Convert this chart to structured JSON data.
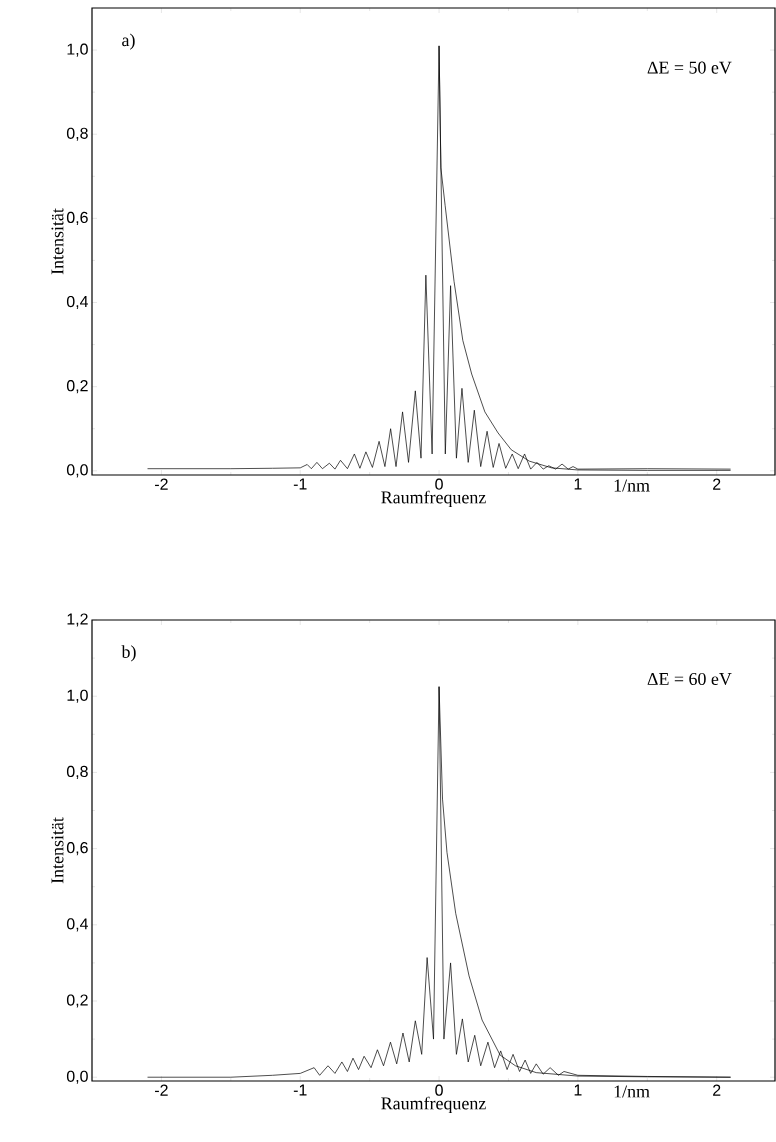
{
  "chart_data": [
    {
      "type": "line",
      "xlabel": "Raumfrequenz",
      "ylabel": "Intensität",
      "annotations": [
        "a)",
        "ΔE = 50 eV",
        "1/nm"
      ],
      "xlim": [
        -2.5,
        2.42
      ],
      "ylim": [
        -0.01,
        1.1
      ],
      "xticks": [
        -2,
        -1,
        0,
        1,
        2
      ],
      "yticks": [
        {
          "value": 0,
          "label": "0,0"
        },
        {
          "value": 0.2,
          "label": "0,2"
        },
        {
          "value": 0.4,
          "label": "0,4"
        },
        {
          "value": 0.6,
          "label": "0,6"
        },
        {
          "value": 0.8,
          "label": "0,8"
        },
        {
          "value": 1.0,
          "label": "1,0"
        }
      ],
      "series": [
        {
          "color": "#000000",
          "x": [
            -2.1,
            -1.5,
            -1.2,
            -1.0,
            -0.95,
            -0.92,
            -0.88,
            -0.84,
            -0.79,
            -0.75,
            -0.71,
            -0.66,
            -0.61,
            -0.57,
            -0.527,
            -0.48,
            -0.432,
            -0.39,
            -0.349,
            -0.31,
            -0.263,
            -0.22,
            -0.171,
            -0.13,
            -0.095,
            -0.05,
            0,
            0.045,
            0.083,
            0.125,
            0.165,
            0.21,
            0.254,
            0.3,
            0.346,
            0.39,
            0.432,
            0.48,
            0.527,
            0.57,
            0.616,
            0.66,
            0.705,
            0.75,
            0.79,
            0.84,
            0.886,
            0.93,
            0.965,
            1.0,
            1.5,
            2.1
          ],
          "values": [
            0.005,
            0.005,
            0.006,
            0.007,
            0.015,
            0.005,
            0.02,
            0.005,
            0.018,
            0.004,
            0.025,
            0.005,
            0.04,
            0.006,
            0.045,
            0.008,
            0.07,
            0.01,
            0.1,
            0.01,
            0.14,
            0.02,
            0.19,
            0.03,
            0.465,
            0.04,
            1.01,
            0.04,
            0.44,
            0.03,
            0.196,
            0.02,
            0.144,
            0.01,
            0.094,
            0.008,
            0.065,
            0.006,
            0.04,
            0.005,
            0.04,
            0.004,
            0.02,
            0.004,
            0.012,
            0.004,
            0.016,
            0.004,
            0.01,
            0.004,
            0.005,
            0.004
          ]
        },
        {
          "color": "#000000",
          "x": [
            0,
            0.013,
            0.044,
            0.108,
            0.171,
            0.235,
            0.33,
            0.425,
            0.52,
            0.65,
            0.81,
            1.0,
            1.5,
            2.1
          ],
          "values": [
            1.01,
            0.72,
            0.63,
            0.45,
            0.31,
            0.23,
            0.14,
            0.09,
            0.05,
            0.023,
            0.007,
            0.002,
            0.001,
            0.001
          ]
        }
      ]
    },
    {
      "type": "line",
      "xlabel": "Raumfrequenz",
      "ylabel": "Intensität",
      "annotations": [
        "b)",
        "ΔE = 60 eV",
        "1/nm"
      ],
      "xlim": [
        -2.5,
        2.42
      ],
      "ylim": [
        -0.01,
        1.2
      ],
      "xticks": [
        -2,
        -1,
        0,
        1,
        2
      ],
      "yticks": [
        {
          "value": 0,
          "label": "0,0"
        },
        {
          "value": 0.2,
          "label": "0,2"
        },
        {
          "value": 0.4,
          "label": "0,4"
        },
        {
          "value": 0.6,
          "label": "0,6"
        },
        {
          "value": 0.8,
          "label": "0,8"
        },
        {
          "value": 1.0,
          "label": "1,0"
        },
        {
          "value": 1.2,
          "label": "1,2"
        }
      ],
      "series": [
        {
          "color": "#000000",
          "x": [
            -2.1,
            -1.5,
            -1.2,
            -1.0,
            -0.9,
            -0.86,
            -0.8,
            -0.75,
            -0.7,
            -0.66,
            -0.62,
            -0.58,
            -0.54,
            -0.49,
            -0.444,
            -0.4,
            -0.35,
            -0.305,
            -0.26,
            -0.215,
            -0.171,
            -0.125,
            -0.086,
            -0.04,
            0,
            0.035,
            0.083,
            0.125,
            0.168,
            0.21,
            0.257,
            0.3,
            0.352,
            0.4,
            0.444,
            0.49,
            0.533,
            0.58,
            0.62,
            0.66,
            0.7,
            0.75,
            0.8,
            0.86,
            0.9,
            1.0,
            1.5,
            2.1
          ],
          "values": [
            0.0,
            0.0,
            0.005,
            0.01,
            0.025,
            0.005,
            0.03,
            0.01,
            0.04,
            0.015,
            0.05,
            0.02,
            0.055,
            0.025,
            0.072,
            0.03,
            0.092,
            0.035,
            0.116,
            0.04,
            0.148,
            0.06,
            0.314,
            0.1,
            1.025,
            0.1,
            0.3,
            0.06,
            0.153,
            0.04,
            0.11,
            0.03,
            0.092,
            0.025,
            0.069,
            0.02,
            0.06,
            0.015,
            0.045,
            0.01,
            0.035,
            0.008,
            0.025,
            0.005,
            0.015,
            0.005,
            0.002,
            0.0
          ]
        },
        {
          "color": "#000000",
          "x": [
            0,
            0.025,
            0.057,
            0.12,
            0.216,
            0.31,
            0.44,
            0.55,
            0.7,
            1.0,
            1.5,
            2.1
          ],
          "values": [
            1.025,
            0.73,
            0.59,
            0.43,
            0.266,
            0.15,
            0.058,
            0.03,
            0.012,
            0.003,
            0.001,
            0.0
          ]
        }
      ]
    }
  ]
}
